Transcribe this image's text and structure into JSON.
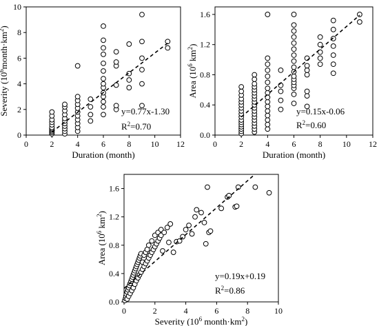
{
  "chart_data": [
    {
      "id": "p1",
      "type": "scatter",
      "title": "",
      "xlabel": "Duration (month)",
      "ylabel_main": "Severity (10",
      "ylabel_sup": "6",
      "ylabel_tail": "month·km",
      "ylabel_sup2": "2",
      "ylabel_close": ")",
      "xlim": [
        0,
        12
      ],
      "ylim": [
        0,
        10
      ],
      "xticks": [
        0,
        2,
        4,
        6,
        8,
        10,
        12
      ],
      "yticks": [
        0,
        2,
        4,
        6,
        8,
        10
      ],
      "regression": {
        "slope": 0.77,
        "intercept": -1.3,
        "x_range": [
          2,
          11
        ]
      },
      "equation": "y=0.77x-1.30",
      "r2_prefix": "R",
      "r2_sup": "2",
      "r2_value": "=0.70",
      "points": [
        [
          2,
          0.1
        ],
        [
          2,
          0.2
        ],
        [
          2,
          0.3
        ],
        [
          2,
          0.4
        ],
        [
          2,
          0.5
        ],
        [
          2,
          0.6
        ],
        [
          2,
          0.8
        ],
        [
          2,
          1.0
        ],
        [
          2,
          1.2
        ],
        [
          2,
          1.5
        ],
        [
          2,
          1.8
        ],
        [
          3,
          0.1
        ],
        [
          3,
          0.3
        ],
        [
          3,
          0.5
        ],
        [
          3,
          0.7
        ],
        [
          3,
          0.9
        ],
        [
          3,
          1.1
        ],
        [
          3,
          1.3
        ],
        [
          3,
          1.6
        ],
        [
          3,
          1.9
        ],
        [
          3,
          2.2
        ],
        [
          3,
          2.4
        ],
        [
          4,
          0.3
        ],
        [
          4,
          0.6
        ],
        [
          4,
          0.9
        ],
        [
          4,
          1.2
        ],
        [
          4,
          1.5
        ],
        [
          4,
          1.8
        ],
        [
          4,
          2.1
        ],
        [
          4,
          2.4
        ],
        [
          4,
          2.7
        ],
        [
          4,
          3.0
        ],
        [
          4,
          5.4
        ],
        [
          5,
          1.1
        ],
        [
          5,
          1.6
        ],
        [
          5,
          2.2
        ],
        [
          5,
          2.8
        ],
        [
          6,
          1.6
        ],
        [
          6,
          2.2
        ],
        [
          6,
          2.6
        ],
        [
          6,
          3.0
        ],
        [
          6,
          3.3
        ],
        [
          6,
          3.7
        ],
        [
          6,
          4.0
        ],
        [
          6,
          4.4
        ],
        [
          6,
          5.0
        ],
        [
          6,
          5.6
        ],
        [
          6,
          6.3
        ],
        [
          6,
          6.8
        ],
        [
          6,
          7.4
        ],
        [
          6,
          8.5
        ],
        [
          7,
          2.0
        ],
        [
          7,
          2.3
        ],
        [
          7,
          3.9
        ],
        [
          7,
          5.4
        ],
        [
          7,
          5.7
        ],
        [
          7,
          6.5
        ],
        [
          8,
          3.7
        ],
        [
          8,
          4.3
        ],
        [
          8,
          4.8
        ],
        [
          8,
          7.1
        ],
        [
          9,
          2.3
        ],
        [
          9,
          4.0
        ],
        [
          9,
          5.1
        ],
        [
          9,
          6.0
        ],
        [
          9,
          7.3
        ],
        [
          9,
          9.4
        ],
        [
          11,
          6.8
        ],
        [
          11,
          7.3
        ]
      ]
    },
    {
      "id": "p2",
      "type": "scatter",
      "title": "",
      "xlabel": "Duration (month)",
      "ylabel_main": "Area (10",
      "ylabel_sup": "6",
      "ylabel_tail": " km",
      "ylabel_sup2": "2",
      "ylabel_close": ")",
      "xlim": [
        0,
        12
      ],
      "ylim": [
        0,
        1.7
      ],
      "xticks": [
        0,
        2,
        4,
        6,
        8,
        10,
        12
      ],
      "yticks": [
        0,
        0.4,
        0.8,
        1.2,
        1.6
      ],
      "ytick_labels": [
        "0.0",
        "0.4",
        "0.8",
        "1.2",
        "1.6"
      ],
      "regression": {
        "slope": 0.15,
        "intercept": -0.06,
        "x_range": [
          2,
          11
        ]
      },
      "equation": "y=0.15x-0.06",
      "r2_prefix": "R",
      "r2_sup": "2",
      "r2_value": "=0.60",
      "points": [
        [
          2,
          0.02
        ],
        [
          2,
          0.05
        ],
        [
          2,
          0.08
        ],
        [
          2,
          0.11
        ],
        [
          2,
          0.14
        ],
        [
          2,
          0.17
        ],
        [
          2,
          0.2
        ],
        [
          2,
          0.24
        ],
        [
          2,
          0.28
        ],
        [
          2,
          0.32
        ],
        [
          2,
          0.36
        ],
        [
          2,
          0.4
        ],
        [
          2,
          0.44
        ],
        [
          2,
          0.48
        ],
        [
          2,
          0.53
        ],
        [
          2,
          0.58
        ],
        [
          2,
          0.64
        ],
        [
          3,
          0.04
        ],
        [
          3,
          0.08
        ],
        [
          3,
          0.12
        ],
        [
          3,
          0.16
        ],
        [
          3,
          0.2
        ],
        [
          3,
          0.24
        ],
        [
          3,
          0.28
        ],
        [
          3,
          0.32
        ],
        [
          3,
          0.36
        ],
        [
          3,
          0.4
        ],
        [
          3,
          0.44
        ],
        [
          3,
          0.48
        ],
        [
          3,
          0.52
        ],
        [
          3,
          0.56
        ],
        [
          3,
          0.6
        ],
        [
          3,
          0.64
        ],
        [
          3,
          0.68
        ],
        [
          3,
          0.74
        ],
        [
          3,
          0.8
        ],
        [
          4,
          0.08
        ],
        [
          4,
          0.14
        ],
        [
          4,
          0.2
        ],
        [
          4,
          0.26
        ],
        [
          4,
          0.32
        ],
        [
          4,
          0.38
        ],
        [
          4,
          0.44
        ],
        [
          4,
          0.5
        ],
        [
          4,
          0.56
        ],
        [
          4,
          0.62
        ],
        [
          4,
          0.7
        ],
        [
          4,
          0.78
        ],
        [
          4,
          0.86
        ],
        [
          4,
          0.94
        ],
        [
          4,
          1.02
        ],
        [
          4,
          1.6
        ],
        [
          5,
          0.34
        ],
        [
          5,
          0.46
        ],
        [
          5,
          0.58
        ],
        [
          5,
          0.66
        ],
        [
          5,
          0.86
        ],
        [
          6,
          0.42
        ],
        [
          6,
          0.54
        ],
        [
          6,
          0.62
        ],
        [
          6,
          0.66
        ],
        [
          6,
          0.7
        ],
        [
          6,
          0.74
        ],
        [
          6,
          0.78
        ],
        [
          6,
          0.84
        ],
        [
          6,
          0.9
        ],
        [
          6,
          0.98
        ],
        [
          6,
          1.06
        ],
        [
          6,
          1.14
        ],
        [
          6,
          1.22
        ],
        [
          6,
          1.3
        ],
        [
          6,
          1.38
        ],
        [
          6,
          1.46
        ],
        [
          6,
          1.6
        ],
        [
          7,
          0.38
        ],
        [
          7,
          0.52
        ],
        [
          7,
          0.58
        ],
        [
          7,
          0.8
        ],
        [
          7,
          0.86
        ],
        [
          7,
          0.92
        ],
        [
          7,
          1.02
        ],
        [
          8,
          0.94
        ],
        [
          8,
          1.02
        ],
        [
          8,
          1.1
        ],
        [
          8,
          1.2
        ],
        [
          8,
          1.3
        ],
        [
          9,
          0.82
        ],
        [
          9,
          0.94
        ],
        [
          9,
          1.06
        ],
        [
          9,
          1.18
        ],
        [
          9,
          1.28
        ],
        [
          9,
          1.4
        ],
        [
          9,
          1.52
        ],
        [
          11,
          1.5
        ],
        [
          11,
          1.6
        ]
      ]
    },
    {
      "id": "p3",
      "type": "scatter",
      "title": "",
      "xlabel_main": "Severity (10",
      "xlabel_sup": "6",
      "xlabel_tail": " month·km",
      "xlabel_sup2": "2",
      "xlabel_close": ")",
      "ylabel_main": "Area (10",
      "ylabel_sup": "6",
      "ylabel_tail": " km",
      "ylabel_sup2": "2",
      "ylabel_close": ")",
      "xlim": [
        0,
        10
      ],
      "ylim": [
        0,
        1.8
      ],
      "xticks": [
        0,
        2,
        4,
        6,
        8,
        10
      ],
      "yticks": [
        0,
        0.4,
        0.8,
        1.2,
        1.6
      ],
      "ytick_labels": [
        "0.0",
        "0.4",
        "0.8",
        "1.2",
        "1.6"
      ],
      "regression": {
        "slope": 0.19,
        "intercept": 0.19,
        "x_range": [
          0,
          8.5
        ]
      },
      "equation": "y=0.19x+0.19",
      "r2_prefix": "R",
      "r2_sup": "2",
      "r2_value": "=0.86",
      "points": [
        [
          0.05,
          0.02
        ],
        [
          0.1,
          0.05
        ],
        [
          0.12,
          0.08
        ],
        [
          0.15,
          0.11
        ],
        [
          0.2,
          0.14
        ],
        [
          0.2,
          0.04
        ],
        [
          0.25,
          0.17
        ],
        [
          0.3,
          0.2
        ],
        [
          0.3,
          0.08
        ],
        [
          0.35,
          0.23
        ],
        [
          0.4,
          0.26
        ],
        [
          0.4,
          0.12
        ],
        [
          0.45,
          0.29
        ],
        [
          0.5,
          0.32
        ],
        [
          0.5,
          0.16
        ],
        [
          0.55,
          0.35
        ],
        [
          0.6,
          0.38
        ],
        [
          0.6,
          0.2
        ],
        [
          0.65,
          0.41
        ],
        [
          0.7,
          0.44
        ],
        [
          0.7,
          0.25
        ],
        [
          0.75,
          0.47
        ],
        [
          0.8,
          0.5
        ],
        [
          0.8,
          0.3
        ],
        [
          0.85,
          0.53
        ],
        [
          0.9,
          0.56
        ],
        [
          0.9,
          0.34
        ],
        [
          0.95,
          0.59
        ],
        [
          1.0,
          0.62
        ],
        [
          1.0,
          0.38
        ],
        [
          1.05,
          0.65
        ],
        [
          1.1,
          0.68
        ],
        [
          1.1,
          0.42
        ],
        [
          1.2,
          0.46
        ],
        [
          1.2,
          0.56
        ],
        [
          1.3,
          0.5
        ],
        [
          1.3,
          0.66
        ],
        [
          1.4,
          0.54
        ],
        [
          1.4,
          0.7
        ],
        [
          1.5,
          0.58
        ],
        [
          1.5,
          0.74
        ],
        [
          1.6,
          0.62
        ],
        [
          1.6,
          0.8
        ],
        [
          1.7,
          0.66
        ],
        [
          1.8,
          0.7
        ],
        [
          1.8,
          0.86
        ],
        [
          1.9,
          0.74
        ],
        [
          2.0,
          0.78
        ],
        [
          2.0,
          0.94
        ],
        [
          2.1,
          0.82
        ],
        [
          2.2,
          0.86
        ],
        [
          2.2,
          0.98
        ],
        [
          2.3,
          0.9
        ],
        [
          2.4,
          0.94
        ],
        [
          2.4,
          1.02
        ],
        [
          2.5,
          0.72
        ],
        [
          2.6,
          0.98
        ],
        [
          2.8,
          1.05
        ],
        [
          2.9,
          0.84
        ],
        [
          3.0,
          1.1
        ],
        [
          3.2,
          0.7
        ],
        [
          3.4,
          0.85
        ],
        [
          3.6,
          0.86
        ],
        [
          3.8,
          0.92
        ],
        [
          4.0,
          1.02
        ],
        [
          4.2,
          1.08
        ],
        [
          4.4,
          0.96
        ],
        [
          4.6,
          1.2
        ],
        [
          4.7,
          1.3
        ],
        [
          5.0,
          1.26
        ],
        [
          5.2,
          1.12
        ],
        [
          5.3,
          0.82
        ],
        [
          5.5,
          0.98
        ],
        [
          5.6,
          1.0
        ],
        [
          5.4,
          1.62
        ],
        [
          6.3,
          1.32
        ],
        [
          6.7,
          1.48
        ],
        [
          6.8,
          1.5
        ],
        [
          7.2,
          1.34
        ],
        [
          7.3,
          1.35
        ],
        [
          7.4,
          1.62
        ],
        [
          8.5,
          1.62
        ],
        [
          9.4,
          1.54
        ]
      ]
    }
  ],
  "style": {
    "marker_stroke": "#000000",
    "marker_fill": "#ffffff",
    "line_color": "#000000"
  }
}
